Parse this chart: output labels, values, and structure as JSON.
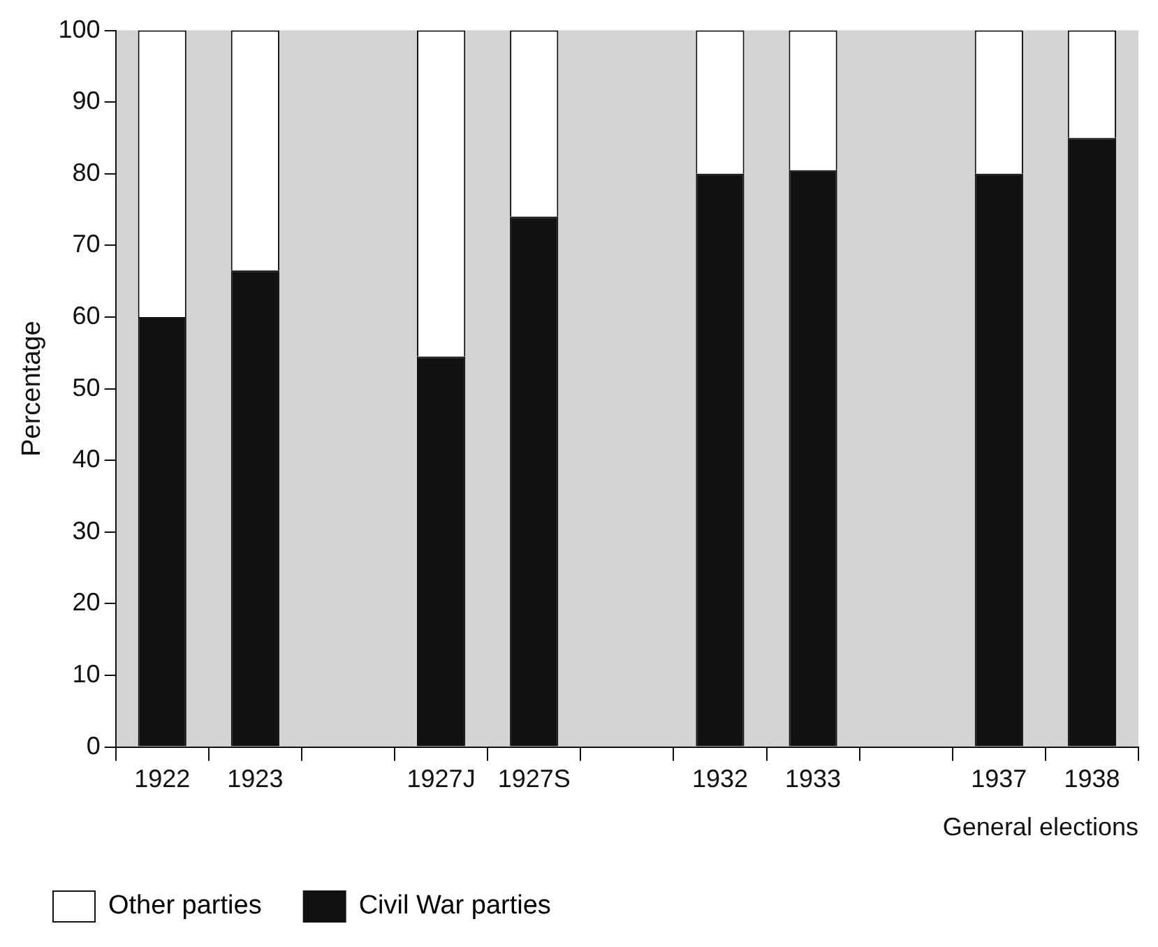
{
  "chart_data": {
    "type": "bar",
    "stacked": true,
    "xlabel": "General elections",
    "ylabel": "Percentage",
    "categories": [
      "1922",
      "1923",
      null,
      "1927J",
      "1927S",
      null,
      "1932",
      "1933",
      null,
      "1937",
      "1938"
    ],
    "series": [
      {
        "name": "Civil War parties",
        "color": "#111111",
        "values": [
          60,
          66.5,
          null,
          54.5,
          74,
          null,
          80,
          80.5,
          null,
          80,
          85
        ]
      },
      {
        "name": "Other parties",
        "color": "#ffffff",
        "values": [
          40,
          33.5,
          null,
          45.5,
          26,
          null,
          20,
          19.5,
          null,
          20,
          15
        ]
      }
    ],
    "ylim": [
      0,
      100
    ],
    "yticks": [
      0,
      10,
      20,
      30,
      40,
      50,
      60,
      70,
      80,
      90,
      100
    ],
    "grid": false,
    "legend": "bottom left"
  }
}
